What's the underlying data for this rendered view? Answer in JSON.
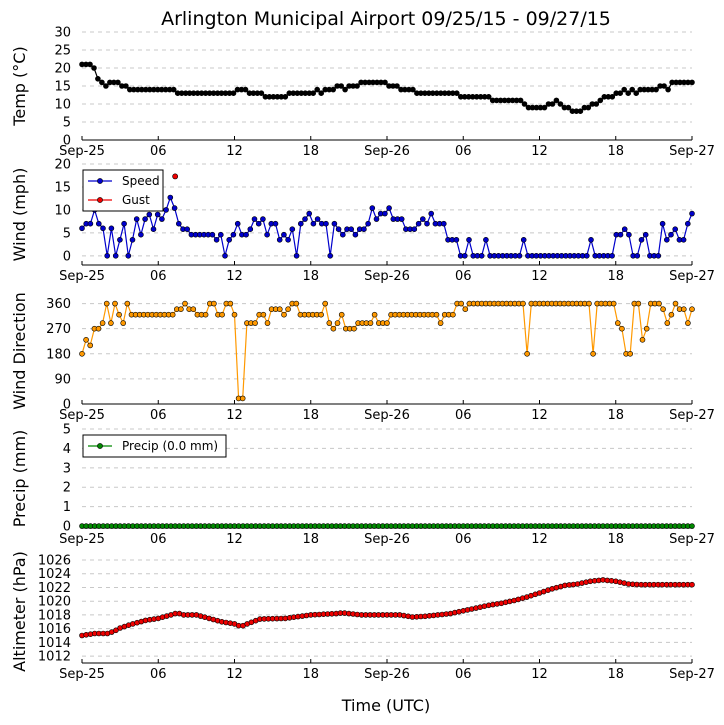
{
  "chart_data": {
    "type": "line",
    "title": "Arlington Municipal Airport 09/25/15 - 09/27/15",
    "xlabel": "Time (UTC)",
    "x_ticks": [
      "Sep-25",
      "06",
      "12",
      "18",
      "Sep-26",
      "06",
      "12",
      "18",
      "Sep-27"
    ],
    "x_range_hours": [
      0,
      48
    ],
    "interval_hours": 0.333,
    "panels": [
      {
        "key": "temp",
        "ylabel": "Temp (°C)",
        "ylim": [
          0,
          30
        ],
        "yticks": [
          0,
          5,
          10,
          15,
          20,
          25,
          30
        ],
        "series": [
          {
            "color": "#000000",
            "values": [
              21,
              21,
              21,
              20,
              17,
              16,
              15,
              16,
              16,
              16,
              15,
              15,
              14,
              14,
              14,
              14,
              14,
              14,
              14,
              14,
              14,
              14,
              14,
              14,
              13,
              13,
              13,
              13,
              13,
              13,
              13,
              13,
              13,
              13,
              13,
              13,
              13,
              13,
              13,
              14,
              14,
              14,
              13,
              13,
              13,
              13,
              12,
              12,
              12,
              12,
              12,
              12,
              13,
              13,
              13,
              13,
              13,
              13,
              13,
              14,
              13,
              14,
              14,
              14,
              15,
              15,
              14,
              15,
              15,
              15,
              16,
              16,
              16,
              16,
              16,
              16,
              16,
              15,
              15,
              15,
              14,
              14,
              14,
              14,
              13,
              13,
              13,
              13,
              13,
              13,
              13,
              13,
              13,
              13,
              13,
              12,
              12,
              12,
              12,
              12,
              12,
              12,
              12,
              11,
              11,
              11,
              11,
              11,
              11,
              11,
              11,
              10,
              9,
              9,
              9,
              9,
              9,
              10,
              10,
              11,
              10,
              9,
              9,
              8,
              8,
              8,
              9,
              9,
              10,
              10,
              11,
              12,
              12,
              12,
              13,
              13,
              14,
              13,
              14,
              13,
              14,
              14,
              14,
              14,
              14,
              15,
              15,
              14,
              16,
              16,
              16,
              16,
              16,
              16
            ]
          }
        ]
      },
      {
        "key": "wind",
        "ylabel": "Wind (mph)",
        "ylim": [
          -2,
          20
        ],
        "yticks": [
          0,
          5,
          10,
          15,
          20
        ],
        "legend": {
          "position": "upper-left",
          "entries": [
            "Speed",
            "Gust"
          ]
        },
        "series": [
          {
            "name": "Speed",
            "color": "#0000cc",
            "values": [
              6,
              7,
              7,
              10,
              7,
              6,
              0,
              6,
              0,
              3.5,
              7,
              0,
              3.5,
              8,
              4.6,
              8,
              9,
              5.8,
              9,
              8,
              10,
              12.7,
              10.4,
              7,
              5.8,
              5.8,
              4.6,
              4.6,
              4.6,
              4.6,
              4.6,
              4.6,
              3.5,
              4.6,
              0,
              3.5,
              4.6,
              7,
              4.6,
              4.6,
              5.8,
              8,
              7,
              8,
              4.6,
              7,
              7,
              3.5,
              4.6,
              3.5,
              5.8,
              0,
              7,
              8,
              9.2,
              7,
              8,
              7,
              7,
              0,
              7,
              5.8,
              4.6,
              5.8,
              5.8,
              4.6,
              5.8,
              5.8,
              7,
              10.4,
              8,
              9.2,
              9.2,
              10.4,
              8,
              8,
              8,
              5.8,
              5.8,
              5.8,
              7,
              8,
              7,
              9.2,
              7,
              7,
              7,
              3.5,
              3.5,
              3.5,
              0,
              0,
              3.5,
              0,
              0,
              0,
              3.5,
              0,
              0,
              0,
              0,
              0,
              0,
              0,
              0,
              3.5,
              0,
              0,
              0,
              0,
              0,
              0,
              0,
              0,
              0,
              0,
              0,
              0,
              0,
              0,
              0,
              3.5,
              0,
              0,
              0,
              0,
              0,
              4.6,
              4.6,
              5.8,
              4.6,
              0,
              0,
              3.5,
              4.6,
              0,
              0,
              0,
              7,
              3.5,
              4.6,
              5.8,
              3.5,
              3.5,
              7,
              9.2
            ]
          },
          {
            "name": "Gust",
            "color": "#ee0000",
            "points": [
              [
                7.33,
                17.3
              ]
            ]
          }
        ]
      },
      {
        "key": "dir",
        "ylabel": "Wind Direction",
        "ylim": [
          0,
          380
        ],
        "yticks": [
          0,
          90,
          180,
          270,
          360
        ],
        "series": [
          {
            "color": "#ff9900",
            "values": [
              180,
              230,
              210,
              270,
              270,
              290,
              360,
              290,
              360,
              320,
              290,
              360,
              320,
              320,
              320,
              320,
              320,
              320,
              320,
              320,
              320,
              320,
              320,
              340,
              340,
              360,
              340,
              340,
              320,
              320,
              320,
              360,
              360,
              320,
              320,
              360,
              360,
              320,
              20,
              20,
              290,
              290,
              290,
              320,
              320,
              290,
              340,
              340,
              340,
              320,
              340,
              360,
              360,
              320,
              320,
              320,
              320,
              320,
              320,
              360,
              290,
              270,
              290,
              320,
              270,
              270,
              270,
              290,
              290,
              290,
              290,
              320,
              290,
              290,
              290,
              320,
              320,
              320,
              320,
              320,
              320,
              320,
              320,
              320,
              320,
              320,
              320,
              290,
              320,
              320,
              320,
              360,
              360,
              340,
              360,
              360,
              360,
              360,
              360,
              360,
              360,
              360,
              360,
              360,
              360,
              360,
              360,
              360,
              180,
              360,
              360,
              360,
              360,
              360,
              360,
              360,
              360,
              360,
              360,
              360,
              360,
              360,
              360,
              360,
              180,
              360,
              360,
              360,
              360,
              360,
              290,
              270,
              180,
              180,
              360,
              360,
              230,
              270,
              360,
              360,
              360,
              340,
              290,
              320,
              360,
              340,
              340,
              290,
              340
            ]
          }
        ]
      },
      {
        "key": "precip",
        "ylabel": "Precip (mm)",
        "ylim": [
          -0.1,
          5
        ],
        "yticks": [
          0,
          1,
          2,
          3,
          4,
          5
        ],
        "legend": {
          "position": "upper-left",
          "entries": [
            "Precip (0.0 mm)"
          ]
        },
        "series": [
          {
            "name": "Precip (0.0 mm)",
            "color": "#008800",
            "constant": 0
          }
        ]
      },
      {
        "key": "alt",
        "ylabel": "Altimeter (hPa)",
        "ylim": [
          1011,
          1026
        ],
        "yticks": [
          1012,
          1014,
          1016,
          1018,
          1020,
          1022,
          1024,
          1026
        ],
        "series": [
          {
            "color": "#ee0000",
            "points_sparse": [
              [
                0,
                1015
              ],
              [
                1,
                1015.3
              ],
              [
                2,
                1015.3
              ],
              [
                2.5,
                1015.6
              ],
              [
                3,
                1016.1
              ],
              [
                4,
                1016.7
              ],
              [
                5,
                1017.2
              ],
              [
                6,
                1017.5
              ],
              [
                7,
                1018
              ],
              [
                7.5,
                1018.3
              ],
              [
                8,
                1018
              ],
              [
                9,
                1018
              ],
              [
                10,
                1017.5
              ],
              [
                11,
                1017
              ],
              [
                12,
                1016.7
              ],
              [
                12.5,
                1016.3
              ],
              [
                13,
                1016.7
              ],
              [
                14,
                1017.4
              ],
              [
                16,
                1017.5
              ],
              [
                18,
                1018
              ],
              [
                20,
                1018.2
              ],
              [
                20.5,
                1018.3
              ],
              [
                22,
                1018
              ],
              [
                24,
                1018
              ],
              [
                25,
                1018
              ],
              [
                26,
                1017.7
              ],
              [
                27,
                1017.8
              ],
              [
                28,
                1018
              ],
              [
                29,
                1018.2
              ],
              [
                30,
                1018.6
              ],
              [
                31,
                1019
              ],
              [
                32,
                1019.4
              ],
              [
                33,
                1019.7
              ],
              [
                34,
                1020.1
              ],
              [
                35,
                1020.6
              ],
              [
                36,
                1021.2
              ],
              [
                37,
                1021.8
              ],
              [
                38,
                1022.3
              ],
              [
                39,
                1022.5
              ],
              [
                40,
                1022.9
              ],
              [
                41,
                1023.1
              ],
              [
                42,
                1022.9
              ],
              [
                43,
                1022.5
              ],
              [
                44,
                1022.4
              ],
              [
                48,
                1022.4
              ]
            ]
          }
        ]
      }
    ]
  }
}
